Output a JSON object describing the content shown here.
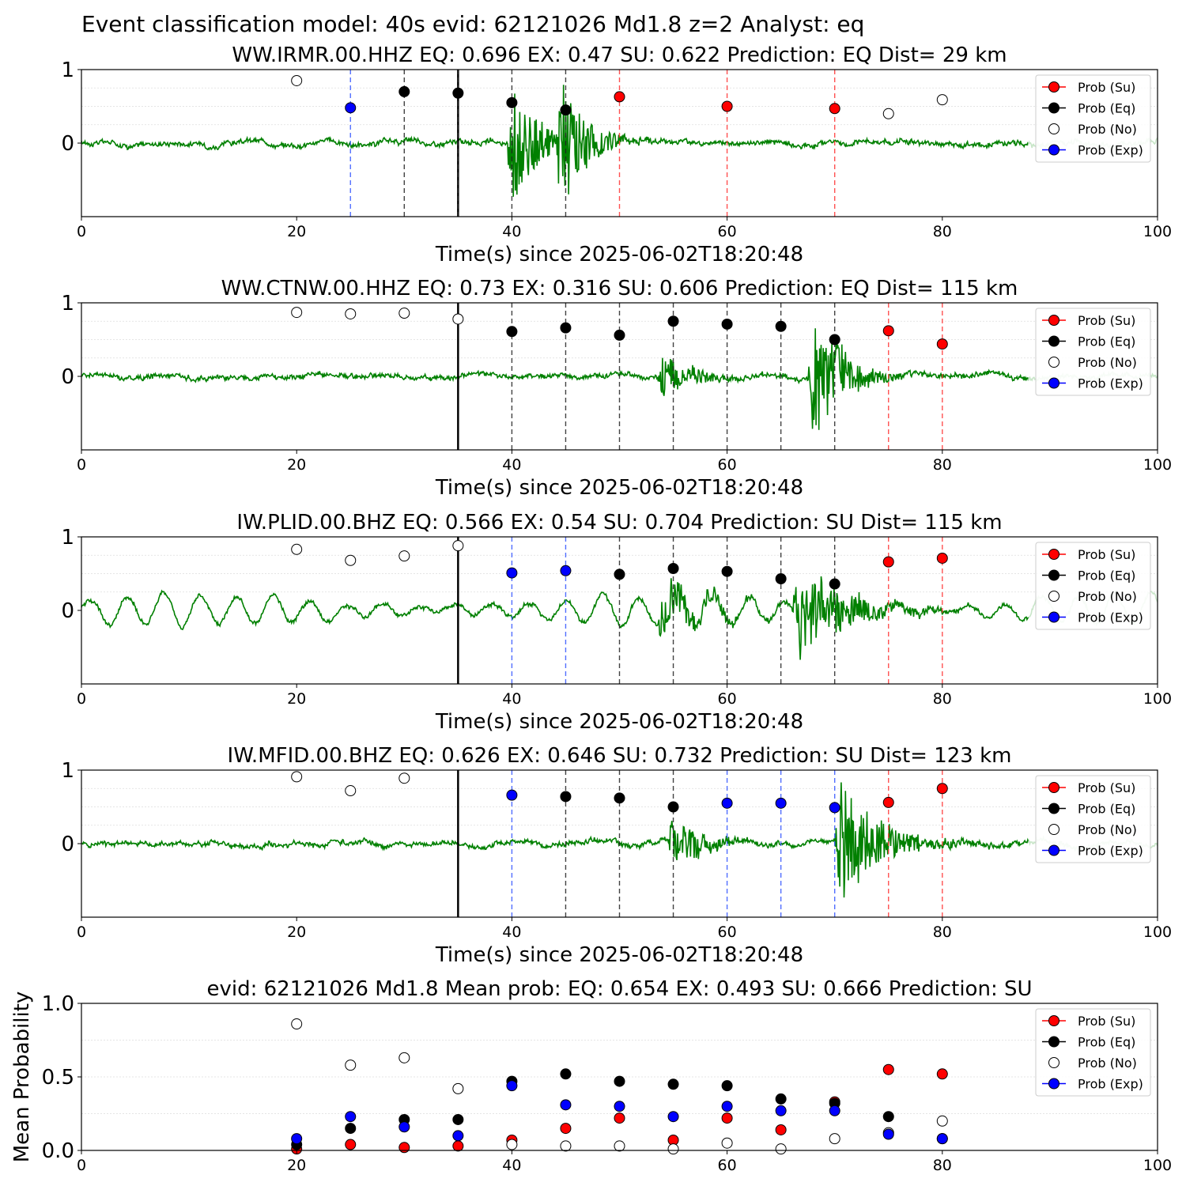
{
  "title": "Event classification model: 40s evid: 62121026 Md1.8 z=2 Analyst: eq",
  "legend_labels": [
    "Prob (Su)",
    "Prob (Eq)",
    "Prob (No)",
    "Prob (Exp)"
  ],
  "colors": {
    "Su": "#ff0000",
    "Eq": "#000000",
    "No": "#ffffff",
    "Exp": "#0000ff",
    "trace": "#008000",
    "trace_faded": "#c8e6c8"
  },
  "chart_data": [
    {
      "type": "scatter",
      "title": "WW.IRMR.00.HHZ   EQ: 0.696  EX: 0.47  SU: 0.622   Prediction: EQ    Dist= 29 km",
      "xlabel": "Time(s) since 2025-06-02T18:20:48",
      "xlim": [
        0,
        100
      ],
      "ylim": [
        -1,
        1
      ],
      "xticks": [
        "0",
        "20",
        "40",
        "60",
        "80",
        "100"
      ],
      "yticks": [
        "0",
        "1"
      ],
      "origin_time": 35,
      "points": [
        {
          "t": 20,
          "p": 0.85,
          "class": "No"
        },
        {
          "t": 25,
          "p": 0.48,
          "class": "Exp"
        },
        {
          "t": 30,
          "p": 0.7,
          "class": "Eq"
        },
        {
          "t": 35,
          "p": 0.68,
          "class": "Eq"
        },
        {
          "t": 40,
          "p": 0.55,
          "class": "Eq"
        },
        {
          "t": 45,
          "p": 0.45,
          "class": "Eq"
        },
        {
          "t": 50,
          "p": 0.63,
          "class": "Su"
        },
        {
          "t": 60,
          "p": 0.5,
          "class": "Su"
        },
        {
          "t": 70,
          "p": 0.47,
          "class": "Su"
        },
        {
          "t": 75,
          "p": 0.4,
          "class": "No"
        },
        {
          "t": 80,
          "p": 0.59,
          "class": "No"
        }
      ],
      "trace": {
        "noise": 0.05,
        "waves": [],
        "bursts": [
          {
            "start": 39.5,
            "amp": 0.9,
            "dur": 5
          },
          {
            "start": 44,
            "amp": 0.95,
            "dur": 5
          }
        ]
      }
    },
    {
      "type": "scatter",
      "title": "WW.CTNW.00.HHZ   EQ: 0.73  EX: 0.316  SU: 0.606   Prediction: EQ    Dist= 115 km",
      "xlabel": "Time(s) since 2025-06-02T18:20:48",
      "xlim": [
        0,
        100
      ],
      "ylim": [
        -1,
        1
      ],
      "xticks": [
        "0",
        "20",
        "40",
        "60",
        "80",
        "100"
      ],
      "yticks": [
        "0",
        "1"
      ],
      "origin_time": 35,
      "points": [
        {
          "t": 20,
          "p": 0.87,
          "class": "No"
        },
        {
          "t": 25,
          "p": 0.85,
          "class": "No"
        },
        {
          "t": 30,
          "p": 0.86,
          "class": "No"
        },
        {
          "t": 35,
          "p": 0.78,
          "class": "No"
        },
        {
          "t": 40,
          "p": 0.61,
          "class": "Eq"
        },
        {
          "t": 45,
          "p": 0.66,
          "class": "Eq"
        },
        {
          "t": 50,
          "p": 0.56,
          "class": "Eq"
        },
        {
          "t": 55,
          "p": 0.75,
          "class": "Eq"
        },
        {
          "t": 60,
          "p": 0.71,
          "class": "Eq"
        },
        {
          "t": 65,
          "p": 0.68,
          "class": "Eq"
        },
        {
          "t": 70,
          "p": 0.5,
          "class": "Eq"
        },
        {
          "t": 75,
          "p": 0.62,
          "class": "Su"
        },
        {
          "t": 80,
          "p": 0.44,
          "class": "Su"
        }
      ],
      "trace": {
        "noise": 0.05,
        "waves": [],
        "bursts": [
          {
            "start": 53.5,
            "amp": 0.3,
            "dur": 6
          },
          {
            "start": 67.5,
            "amp": 0.9,
            "dur": 6
          }
        ]
      }
    },
    {
      "type": "scatter",
      "title": "IW.PLID.00.BHZ   EQ: 0.566  EX: 0.54  SU: 0.704   Prediction: SU    Dist= 115 km",
      "xlabel": "Time(s) since 2025-06-02T18:20:48",
      "xlim": [
        0,
        100
      ],
      "ylim": [
        -1,
        1
      ],
      "xticks": [
        "0",
        "20",
        "40",
        "60",
        "80",
        "100"
      ],
      "yticks": [
        "0",
        "1"
      ],
      "origin_time": 35,
      "points": [
        {
          "t": 20,
          "p": 0.83,
          "class": "No"
        },
        {
          "t": 25,
          "p": 0.68,
          "class": "No"
        },
        {
          "t": 30,
          "p": 0.74,
          "class": "No"
        },
        {
          "t": 35,
          "p": 0.88,
          "class": "No"
        },
        {
          "t": 40,
          "p": 0.51,
          "class": "Exp"
        },
        {
          "t": 45,
          "p": 0.54,
          "class": "Exp"
        },
        {
          "t": 50,
          "p": 0.49,
          "class": "Eq"
        },
        {
          "t": 55,
          "p": 0.57,
          "class": "Eq"
        },
        {
          "t": 60,
          "p": 0.53,
          "class": "Eq"
        },
        {
          "t": 65,
          "p": 0.43,
          "class": "Eq"
        },
        {
          "t": 70,
          "p": 0.36,
          "class": "Eq"
        },
        {
          "t": 75,
          "p": 0.66,
          "class": "Su"
        },
        {
          "t": 80,
          "p": 0.71,
          "class": "Su"
        }
      ],
      "trace": {
        "noise": 0.04,
        "waves": [
          {
            "amp": 0.22,
            "period": 3.4
          }
        ],
        "bursts": [
          {
            "start": 53.5,
            "amp": 0.35,
            "dur": 8
          },
          {
            "start": 66,
            "amp": 0.7,
            "dur": 9
          }
        ]
      }
    },
    {
      "type": "scatter",
      "title": "IW.MFID.00.BHZ   EQ: 0.626  EX: 0.646  SU: 0.732   Prediction: SU    Dist= 123 km",
      "xlabel": "Time(s) since 2025-06-02T18:20:48",
      "xlim": [
        0,
        100
      ],
      "ylim": [
        -1,
        1
      ],
      "xticks": [
        "0",
        "20",
        "40",
        "60",
        "80",
        "100"
      ],
      "yticks": [
        "0",
        "1"
      ],
      "origin_time": 35,
      "points": [
        {
          "t": 20,
          "p": 0.91,
          "class": "No"
        },
        {
          "t": 25,
          "p": 0.72,
          "class": "No"
        },
        {
          "t": 30,
          "p": 0.89,
          "class": "No"
        },
        {
          "t": 40,
          "p": 0.66,
          "class": "Exp"
        },
        {
          "t": 45,
          "p": 0.64,
          "class": "Eq"
        },
        {
          "t": 50,
          "p": 0.62,
          "class": "Eq"
        },
        {
          "t": 55,
          "p": 0.5,
          "class": "Eq"
        },
        {
          "t": 60,
          "p": 0.55,
          "class": "Exp"
        },
        {
          "t": 65,
          "p": 0.55,
          "class": "Exp"
        },
        {
          "t": 70,
          "p": 0.49,
          "class": "Exp"
        },
        {
          "t": 75,
          "p": 0.56,
          "class": "Su"
        },
        {
          "t": 80,
          "p": 0.75,
          "class": "Su"
        }
      ],
      "trace": {
        "noise": 0.05,
        "waves": [],
        "bursts": [
          {
            "start": 54.5,
            "amp": 0.4,
            "dur": 6
          },
          {
            "start": 70,
            "amp": 0.85,
            "dur": 8
          }
        ]
      }
    },
    {
      "type": "scatter",
      "title": "evid: 62121026  Md1.8   Mean prob:   EQ: 0.654  EX: 0.493  SU: 0.666   Prediction: SU",
      "xlabel": "",
      "ylabel": "Mean Probability",
      "xlim": [
        0,
        100
      ],
      "ylim": [
        0,
        1
      ],
      "xticks": [
        "0",
        "20",
        "40",
        "60",
        "80",
        "100"
      ],
      "yticks": [
        "0.0",
        "0.5",
        "1.0"
      ],
      "series": [
        {
          "name": "Prob (Su)",
          "class": "Su",
          "x": [
            20,
            25,
            30,
            35,
            40,
            45,
            50,
            55,
            60,
            65,
            70,
            75,
            80
          ],
          "y": [
            0.01,
            0.04,
            0.02,
            0.03,
            0.07,
            0.15,
            0.22,
            0.07,
            0.22,
            0.14,
            0.33,
            0.55,
            0.52
          ]
        },
        {
          "name": "Prob (Eq)",
          "class": "Eq",
          "x": [
            20,
            25,
            30,
            35,
            40,
            45,
            50,
            55,
            60,
            65,
            70,
            75,
            80
          ],
          "y": [
            0.04,
            0.15,
            0.21,
            0.21,
            0.47,
            0.52,
            0.47,
            0.45,
            0.44,
            0.35,
            0.32,
            0.23,
            0.08
          ]
        },
        {
          "name": "Prob (No)",
          "class": "No",
          "x": [
            20,
            25,
            30,
            35,
            40,
            45,
            50,
            55,
            60,
            65,
            70,
            75,
            80
          ],
          "y": [
            0.86,
            0.58,
            0.63,
            0.42,
            0.04,
            0.03,
            0.03,
            0.01,
            0.05,
            0.01,
            0.08,
            0.12,
            0.2
          ]
        },
        {
          "name": "Prob (Exp)",
          "class": "Exp",
          "x": [
            20,
            25,
            30,
            35,
            40,
            45,
            50,
            55,
            60,
            65,
            70,
            75,
            80
          ],
          "y": [
            0.08,
            0.23,
            0.16,
            0.1,
            0.44,
            0.31,
            0.3,
            0.23,
            0.3,
            0.27,
            0.27,
            0.11,
            0.08
          ]
        }
      ]
    }
  ]
}
